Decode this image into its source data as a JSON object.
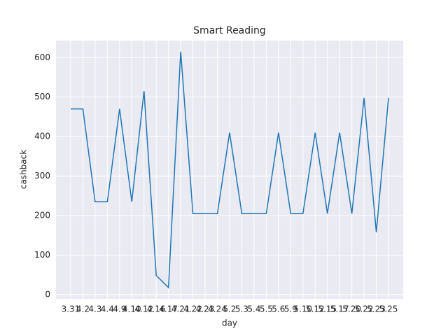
{
  "chart_data": {
    "type": "line",
    "title": "Smart Reading",
    "x_label": "day",
    "y_label": "cashback",
    "categories": [
      "3.31",
      "4.2",
      "4.3",
      "4.4",
      "4.9",
      "4.10",
      "4.12",
      "4.16",
      "4.17",
      "4.21",
      "4.22",
      "4.23",
      "4.24",
      "5.2",
      "5.3",
      "5.4",
      "5.5",
      "5.6",
      "5.9",
      "5.10",
      "5.12",
      "5.15",
      "5.17",
      "5.20",
      "5.22",
      "5.23",
      "5.25"
    ],
    "series": [
      {
        "name": "cashback",
        "color": "#1f77b4",
        "values": [
          470,
          470,
          235,
          235,
          470,
          235,
          515,
          48,
          18,
          615,
          205,
          205,
          205,
          410,
          205,
          205,
          205,
          410,
          205,
          205,
          410,
          205,
          410,
          205,
          498,
          158,
          498
        ]
      }
    ],
    "ylim": [
      -11,
      643
    ],
    "yticks": [
      0,
      100,
      200,
      300,
      400,
      500,
      600
    ],
    "grid": true
  }
}
